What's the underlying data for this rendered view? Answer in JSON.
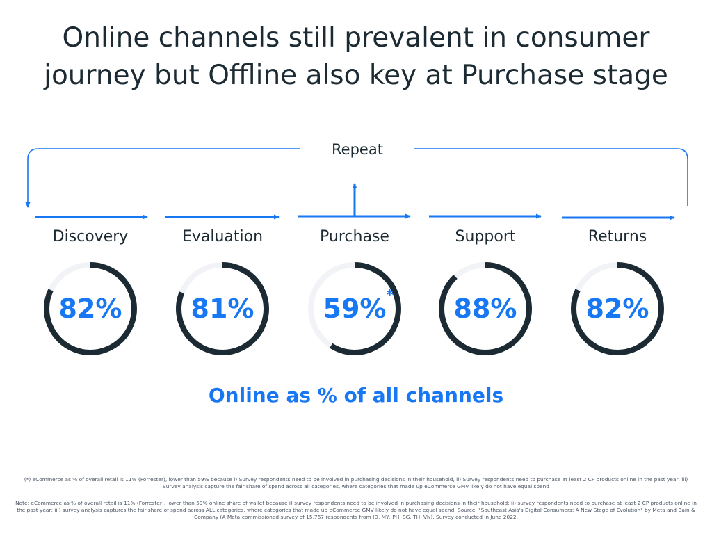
{
  "title": {
    "line1": "Online channels still prevalent in consumer",
    "line2": "journey but Offline also key at Purchase stage"
  },
  "repeat_label": "Repeat",
  "colors": {
    "accent": "#1877f2",
    "ring": "#1c2b33",
    "track": "#f1f3f6",
    "text": "#1c2b33"
  },
  "chart_data": {
    "type": "donut",
    "categories": [
      "Discovery",
      "Evaluation",
      "Purchase",
      "Support",
      "Returns"
    ],
    "values": [
      82,
      81,
      59,
      88,
      82
    ],
    "value_labels": [
      "82%",
      "81%",
      "59%",
      "88%",
      "82%"
    ],
    "annotations": {
      "Purchase": "*"
    },
    "caption": "Online as % of all channels"
  },
  "footnotes": {
    "asterisk": "(*) eCommerce as % of overall retail is 11% (Forrester), lower than 59% because i) Survey respondents need to be involved in purchasing decisions in their household, ii) Survey respondents need to purchase at least 2 CP products online in the past year, iii) Survey analysis capture the fair share of spend across all categories, where categories that made up eCommerce GMV likely do not have equal spend",
    "note": "Note: eCommerce as % of overall retail is 11% (Forrester), lower than 59% online share of wallet because i) survey respondents need to be involved in purchasing decisions in their household; ii) survey respondents need to purchase at least 2 CP products online in the past year; iii) survey analysis captures the fair share of spend across ALL categories, where categories that made up eCommerce GMV likely do not have equal spend. Source: \"Southeast Asia's Digital Consumers: A New Stage of Evolution\" by Meta and Bain & Company (A Meta-commissioned survey of 15,767 respondents from ID, MY, PH, SG, TH, VN). Survey conducted in June 2022."
  }
}
